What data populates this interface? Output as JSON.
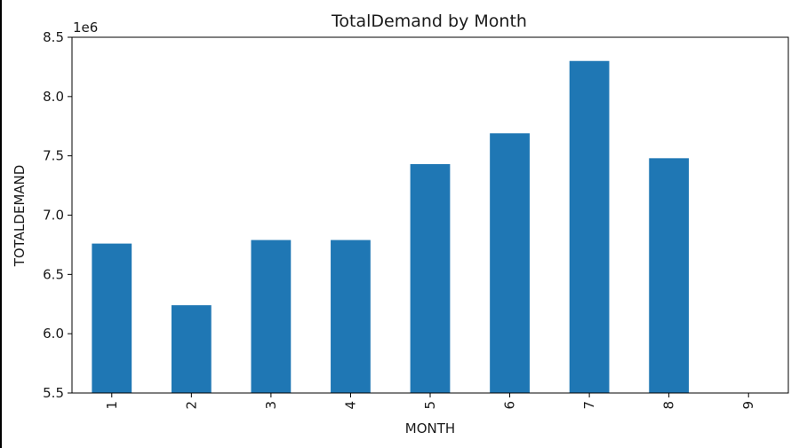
{
  "chart_data": {
    "type": "bar",
    "title": "TotalDemand by Month",
    "xlabel": "MONTH",
    "ylabel": "TOTALDEMAND",
    "offset_label": "1e6",
    "categories": [
      "1",
      "2",
      "3",
      "4",
      "5",
      "6",
      "7",
      "8",
      "9"
    ],
    "values": [
      6760000,
      6240000,
      6790000,
      6790000,
      7430000,
      7690000,
      8300000,
      7480000,
      null
    ],
    "ylim": [
      5500000,
      8500000
    ],
    "yticks": [
      5.5,
      6.0,
      6.5,
      7.0,
      7.5,
      8.0,
      8.5
    ],
    "ytick_labels": [
      "5.5",
      "6.0",
      "6.5",
      "7.0",
      "7.5",
      "8.0",
      "8.5"
    ],
    "bar_color": "#1f77b4",
    "grid": false,
    "legend": "none"
  }
}
